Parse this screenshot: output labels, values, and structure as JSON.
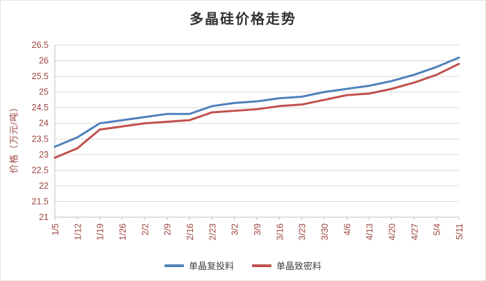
{
  "chart_data": {
    "type": "line",
    "title": "多晶硅价格走势",
    "ylabel": "价格（万元/吨）",
    "xlabel": "",
    "ylim": [
      21,
      26.5
    ],
    "ytick_step": 0.5,
    "grid": true,
    "legend_position": "bottom",
    "categories": [
      "1/5",
      "1/12",
      "1/19",
      "1/26",
      "2/2",
      "2/9",
      "2/16",
      "2/23",
      "3/2",
      "3/9",
      "3/16",
      "3/23",
      "3/30",
      "4/6",
      "4/13",
      "4/20",
      "4/27",
      "5/4",
      "5/11"
    ],
    "series": [
      {
        "name": "单晶复投料",
        "color": "#4f81bd",
        "values": [
          23.25,
          23.55,
          24.0,
          24.1,
          24.2,
          24.3,
          24.3,
          24.55,
          24.65,
          24.7,
          24.8,
          24.85,
          25.0,
          25.1,
          25.2,
          25.35,
          25.55,
          25.8,
          26.1
        ]
      },
      {
        "name": "单晶致密料",
        "color": "#c0504d",
        "values": [
          22.9,
          23.2,
          23.8,
          23.9,
          24.0,
          24.05,
          24.1,
          24.35,
          24.4,
          24.45,
          24.55,
          24.6,
          24.75,
          24.9,
          24.95,
          25.1,
          25.3,
          25.55,
          25.9
        ]
      }
    ]
  },
  "styles": {
    "axis_text_color": "#9e4540",
    "grid_color": "#d9d9d9",
    "axis_line_color": "#bfbfbf",
    "title_color": "#333333",
    "line_width": 3
  }
}
